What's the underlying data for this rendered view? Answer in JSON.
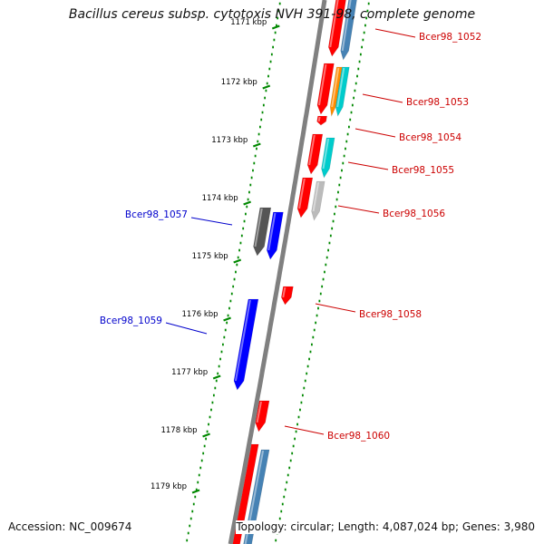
{
  "title": "Bacillus cereus subsp. cytotoxis NVH 391-98, complete genome",
  "footer": {
    "accession": "Accession: NC_009674",
    "topology": "Topology: circular; Length: 4,087,024 bp; Genes: 3,980"
  },
  "colors": {
    "forward_label": "#cc0000",
    "reverse_label": "#0000cc",
    "tick": "#008800",
    "backbone": "#808080",
    "cds_red": "#ff0000",
    "cds_blue": "#0000ff",
    "feature_steelblue": "#4682b4",
    "feature_orange": "#ff8c00",
    "feature_cyan": "#00cccc",
    "feature_dimgray": "#555555",
    "feature_lightgray": "#bbbbbb"
  },
  "ticks": [
    {
      "label": "1171 kbp"
    },
    {
      "label": "1172 kbp"
    },
    {
      "label": "1173 kbp"
    },
    {
      "label": "1174 kbp"
    },
    {
      "label": "1175 kbp"
    },
    {
      "label": "1176 kbp"
    },
    {
      "label": "1177 kbp"
    },
    {
      "label": "1178 kbp"
    },
    {
      "label": "1179 kbp"
    }
  ],
  "gene_labels": [
    {
      "text": "Bcer98_1052",
      "strand": "forward"
    },
    {
      "text": "Bcer98_1053",
      "strand": "forward"
    },
    {
      "text": "Bcer98_1054",
      "strand": "forward"
    },
    {
      "text": "Bcer98_1055",
      "strand": "forward"
    },
    {
      "text": "Bcer98_1056",
      "strand": "forward"
    },
    {
      "text": "Bcer98_1057",
      "strand": "reverse"
    },
    {
      "text": "Bcer98_1058",
      "strand": "forward"
    },
    {
      "text": "Bcer98_1059",
      "strand": "reverse"
    },
    {
      "text": "Bcer98_1060",
      "strand": "forward"
    }
  ]
}
